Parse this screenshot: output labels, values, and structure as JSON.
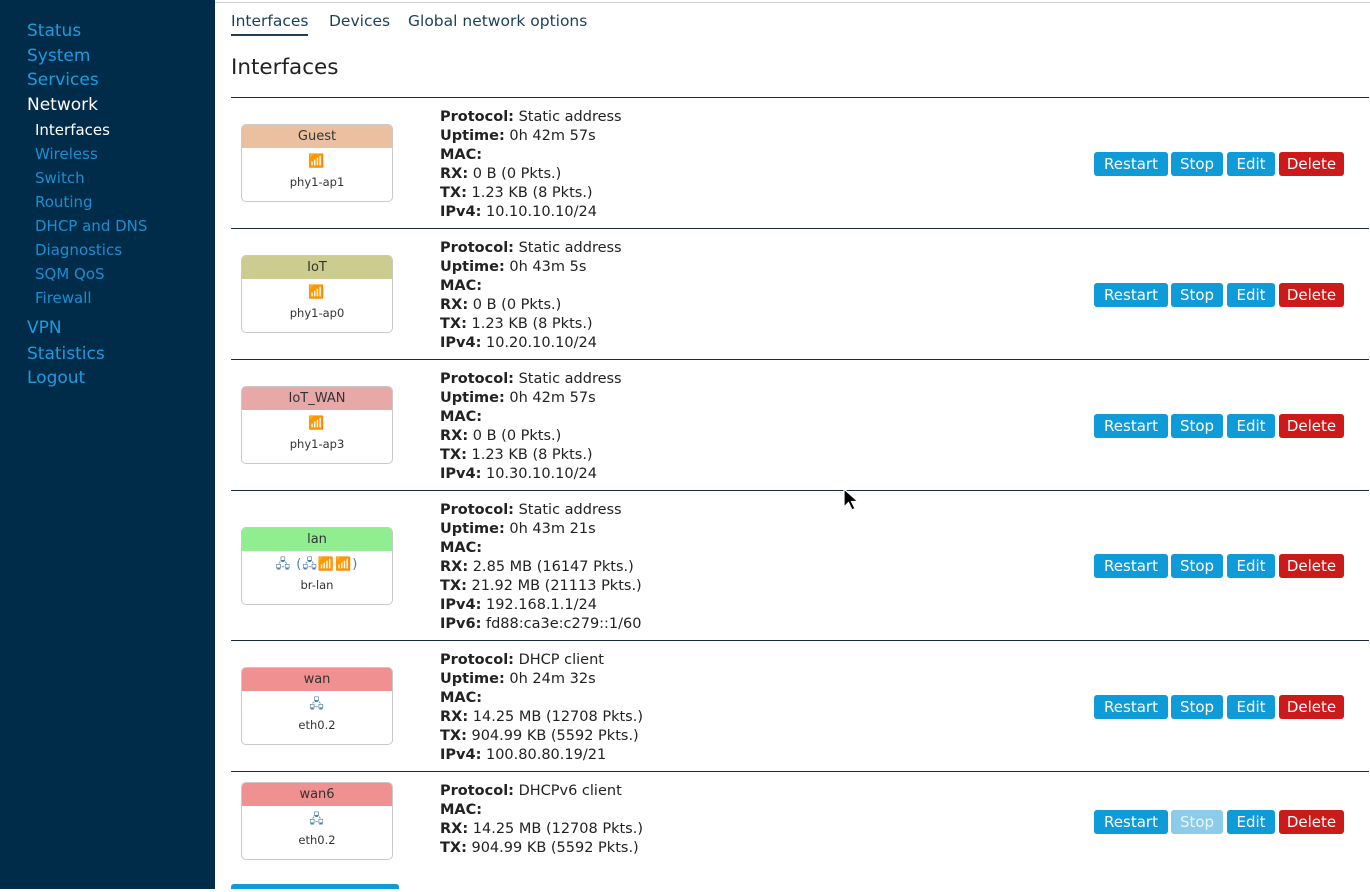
{
  "sidebar": {
    "items": [
      {
        "label": "Status"
      },
      {
        "label": "System"
      },
      {
        "label": "Services"
      },
      {
        "label": "Network"
      },
      {
        "label": "VPN"
      },
      {
        "label": "Statistics"
      },
      {
        "label": "Logout"
      }
    ],
    "network_sub": [
      {
        "label": "Interfaces"
      },
      {
        "label": "Wireless"
      },
      {
        "label": "Switch"
      },
      {
        "label": "Routing"
      },
      {
        "label": "DHCP and DNS"
      },
      {
        "label": "Diagnostics"
      },
      {
        "label": "SQM QoS"
      },
      {
        "label": "Firewall"
      }
    ]
  },
  "tabs": [
    {
      "label": "Interfaces"
    },
    {
      "label": "Devices"
    },
    {
      "label": "Global network options"
    }
  ],
  "page_title": "Interfaces",
  "labels": {
    "protocol": "Protocol:",
    "uptime": "Uptime:",
    "mac": "MAC:",
    "rx": "RX:",
    "tx": "TX:",
    "ipv4": "IPv4:",
    "ipv6": "IPv6:"
  },
  "buttons": {
    "restart": "Restart",
    "stop": "Stop",
    "edit": "Edit",
    "delete": "Delete"
  },
  "interfaces": [
    {
      "name": "Guest",
      "color": "#ebc0a0",
      "icon": "wifi-icon",
      "icon_glyph": "📶",
      "device": "phy1-ap1",
      "protocol": "Static address",
      "uptime": "0h 42m 57s",
      "mac": "",
      "rx": "0 B (0 Pkts.)",
      "tx": "1.23 KB (8 Pkts.)",
      "ipv4": "10.10.10.10/24"
    },
    {
      "name": "IoT",
      "color": "#cccc90",
      "icon": "wifi-icon",
      "icon_glyph": "📶",
      "device": "phy1-ap0",
      "protocol": "Static address",
      "uptime": "0h 43m 5s",
      "mac": "",
      "rx": "0 B (0 Pkts.)",
      "tx": "1.23 KB (8 Pkts.)",
      "ipv4": "10.20.10.10/24"
    },
    {
      "name": "IoT_WAN",
      "color": "#e8a8a8",
      "icon": "wifi-icon",
      "icon_glyph": "📶",
      "device": "phy1-ap3",
      "protocol": "Static address",
      "uptime": "0h 42m 57s",
      "mac": "",
      "rx": "0 B (0 Pkts.)",
      "tx": "1.23 KB (8 Pkts.)",
      "ipv4": "10.30.10.10/24"
    },
    {
      "name": "lan",
      "color": "#90ee90",
      "icon": "bridge-icon",
      "icon_glyph": "🖧 (🖧📶📶)",
      "device": "br-lan",
      "protocol": "Static address",
      "uptime": "0h 43m 21s",
      "mac": "",
      "rx": "2.85 MB (16147 Pkts.)",
      "tx": "21.92 MB (21113 Pkts.)",
      "ipv4": "192.168.1.1/24",
      "ipv6": "fd88:ca3e:c279::1/60"
    },
    {
      "name": "wan",
      "color": "#f09090",
      "icon": "ethernet-icon",
      "icon_glyph": "🖧",
      "device": "eth0.2",
      "protocol": "DHCP client",
      "uptime": "0h 24m 32s",
      "mac": "",
      "rx": "14.25 MB (12708 Pkts.)",
      "tx": "904.99 KB (5592 Pkts.)",
      "ipv4": "100.80.80.19/21"
    },
    {
      "name": "wan6",
      "color": "#f09090",
      "icon": "ethernet-icon",
      "icon_glyph": "🖧",
      "device": "eth0.2",
      "protocol": "DHCPv6 client",
      "mac": "",
      "rx": "14.25 MB (12708 Pkts.)",
      "tx": "904.99 KB (5592 Pkts.)",
      "stop_disabled": true
    }
  ],
  "colors": {
    "sidebar_bg": "#002b49",
    "link": "#1a9ee0",
    "button_blue": "#0f9ad8",
    "button_red": "#cc1a1a"
  }
}
